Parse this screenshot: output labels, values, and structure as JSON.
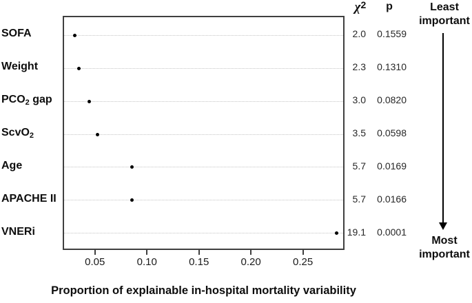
{
  "chart_data": {
    "type": "scatter",
    "title": "",
    "xlabel": "Proportion of explainable in-hospital mortality variability",
    "x_axis": {
      "min": 0.019,
      "max": 0.29,
      "ticks": [
        0.05,
        0.1,
        0.15,
        0.2,
        0.25
      ],
      "tick_labels": [
        "0.05",
        "0.10",
        "0.15",
        "0.20",
        "0.25"
      ],
      "grid": "dotted-horizontal-per-row"
    },
    "columns": {
      "chi_header_letter": "χ",
      "chi_header_exponent": "2",
      "p_header": "p"
    },
    "rows": [
      {
        "label": "SOFA",
        "label_parts": [
          {
            "t": "SOFA"
          }
        ],
        "value": 0.029,
        "chi_square": "2.0",
        "p": "0.1559"
      },
      {
        "label": "Weight",
        "label_parts": [
          {
            "t": "Weight"
          }
        ],
        "value": 0.033,
        "chi_square": "2.3",
        "p": "0.1310"
      },
      {
        "label": "PCO2 gap",
        "label_parts": [
          {
            "t": "PCO"
          },
          {
            "t": "2",
            "sub": true
          },
          {
            "t": " gap"
          }
        ],
        "value": 0.043,
        "chi_square": "3.0",
        "p": "0.0820"
      },
      {
        "label": "ScvO2",
        "label_parts": [
          {
            "t": "ScvO"
          },
          {
            "t": "2",
            "sub": true
          }
        ],
        "value": 0.051,
        "chi_square": "3.5",
        "p": "0.0598"
      },
      {
        "label": "Age",
        "label_parts": [
          {
            "t": "Age"
          }
        ],
        "value": 0.084,
        "chi_square": "5.7",
        "p": "0.0169"
      },
      {
        "label": "APACHE II",
        "label_parts": [
          {
            "t": "APACHE II"
          }
        ],
        "value": 0.084,
        "chi_square": "5.7",
        "p": "0.0166"
      },
      {
        "label": "VNERi",
        "label_parts": [
          {
            "t": "VNERi"
          }
        ],
        "value": 0.281,
        "chi_square": "19.1",
        "p": "0.0001"
      }
    ],
    "annotations": {
      "top": "Least important",
      "bottom": "Most important",
      "arrow_direction": "down"
    },
    "colors": {
      "dot": "#000000",
      "gridline": "#c4c4c4",
      "box_border": "#3f3f3f",
      "text": "#111111",
      "background": "#ffffff"
    }
  }
}
